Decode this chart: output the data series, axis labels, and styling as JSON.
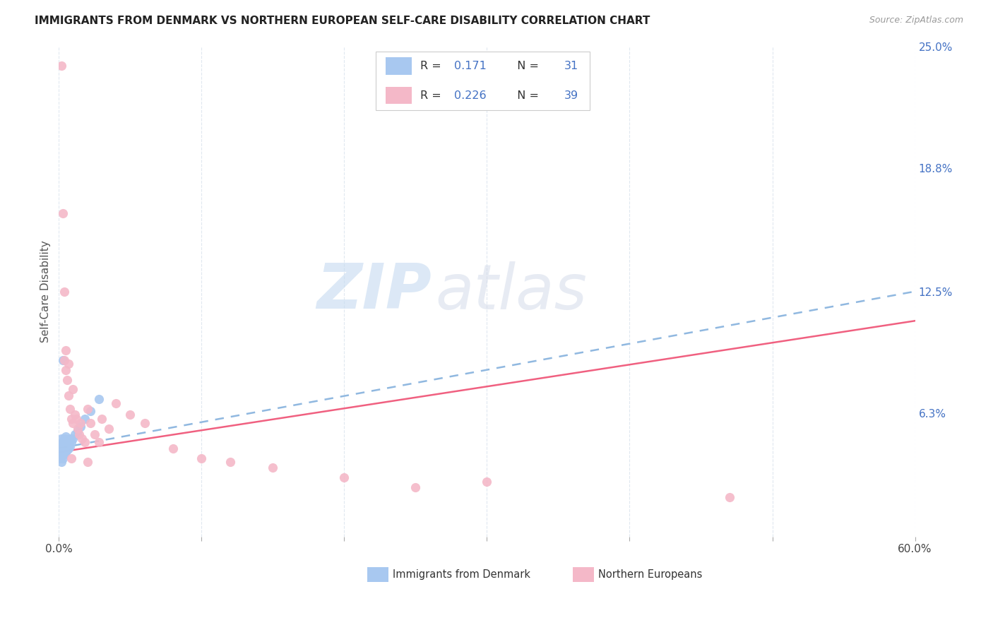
{
  "title": "IMMIGRANTS FROM DENMARK VS NORTHERN EUROPEAN SELF-CARE DISABILITY CORRELATION CHART",
  "source": "Source: ZipAtlas.com",
  "ylabel": "Self-Care Disability",
  "xlim": [
    0.0,
    0.6
  ],
  "ylim": [
    0.0,
    0.25
  ],
  "right_ytick_vals": [
    0.0,
    0.063,
    0.125,
    0.188,
    0.25
  ],
  "right_ytick_labels": [
    "",
    "6.3%",
    "12.5%",
    "18.8%",
    "25.0%"
  ],
  "denmark_color": "#a8c8f0",
  "northern_color": "#f4b8c8",
  "denmark_line_color": "#90b8e0",
  "northern_line_color": "#f06080",
  "denmark_R": 0.171,
  "denmark_N": 31,
  "northern_R": 0.226,
  "northern_N": 39,
  "watermark_zip": "ZIP",
  "watermark_atlas": "atlas",
  "background_color": "#ffffff",
  "grid_color": "#e0e8f0",
  "legend_blue_color": "#4472c4",
  "denmark_x": [
    0.001,
    0.001,
    0.001,
    0.002,
    0.002,
    0.002,
    0.002,
    0.003,
    0.003,
    0.003,
    0.004,
    0.004,
    0.004,
    0.005,
    0.005,
    0.005,
    0.006,
    0.006,
    0.007,
    0.007,
    0.008,
    0.008,
    0.009,
    0.01,
    0.011,
    0.013,
    0.015,
    0.018,
    0.022,
    0.028,
    0.003
  ],
  "denmark_y": [
    0.04,
    0.043,
    0.047,
    0.038,
    0.042,
    0.046,
    0.05,
    0.04,
    0.044,
    0.048,
    0.042,
    0.046,
    0.05,
    0.043,
    0.047,
    0.051,
    0.044,
    0.048,
    0.045,
    0.049,
    0.046,
    0.05,
    0.048,
    0.05,
    0.052,
    0.054,
    0.056,
    0.06,
    0.064,
    0.07,
    0.09
  ],
  "northern_x": [
    0.002,
    0.003,
    0.004,
    0.005,
    0.005,
    0.006,
    0.007,
    0.007,
    0.008,
    0.009,
    0.01,
    0.01,
    0.011,
    0.012,
    0.013,
    0.014,
    0.015,
    0.016,
    0.018,
    0.02,
    0.022,
    0.025,
    0.028,
    0.03,
    0.035,
    0.04,
    0.05,
    0.06,
    0.08,
    0.1,
    0.12,
    0.15,
    0.2,
    0.25,
    0.3,
    0.004,
    0.009,
    0.47,
    0.02
  ],
  "northern_y": [
    0.24,
    0.165,
    0.09,
    0.085,
    0.095,
    0.08,
    0.088,
    0.072,
    0.065,
    0.06,
    0.058,
    0.075,
    0.062,
    0.06,
    0.055,
    0.052,
    0.058,
    0.05,
    0.048,
    0.065,
    0.058,
    0.052,
    0.048,
    0.06,
    0.055,
    0.068,
    0.062,
    0.058,
    0.045,
    0.04,
    0.038,
    0.035,
    0.03,
    0.025,
    0.028,
    0.125,
    0.04,
    0.02,
    0.038
  ]
}
